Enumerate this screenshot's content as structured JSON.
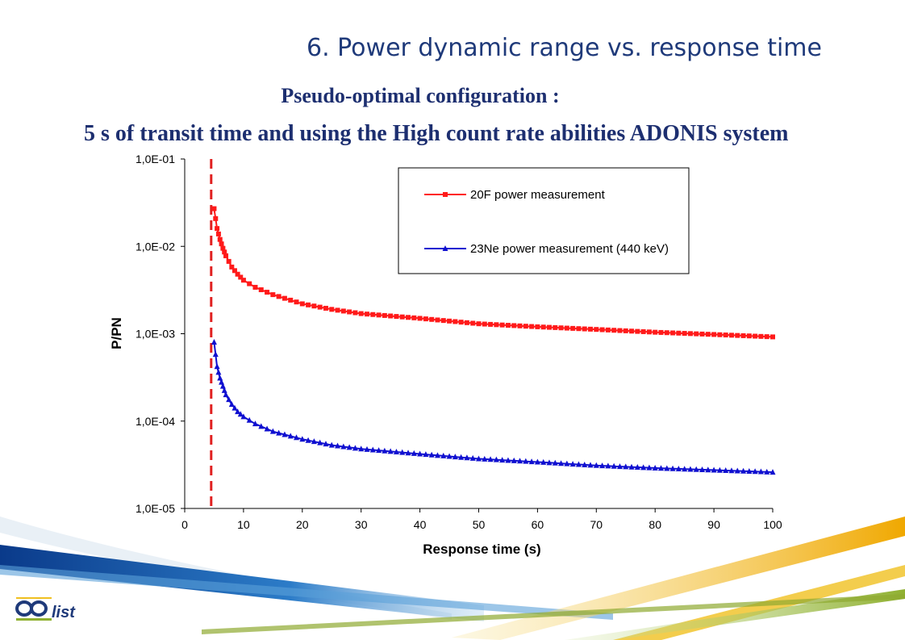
{
  "slide": {
    "title": "6. Power dynamic range vs. response time",
    "subtitle1": "Pseudo-optimal configuration :",
    "subtitle2": "5 s of transit time and using the High count rate abilities ADONIS system"
  },
  "logo": {
    "text": "list"
  },
  "colors": {
    "series1": "#ff1a1a",
    "series2": "#1010d0",
    "title": "#1f3a7a",
    "subtitle": "#1d2f70",
    "marker_line": "#e02020"
  },
  "chart_data": {
    "type": "line",
    "x_label": "Response time (s)",
    "y_label": "P/PN",
    "y_scale": "log",
    "xlim": [
      0,
      100
    ],
    "ylim": [
      1e-05,
      0.1
    ],
    "x_ticks": [
      "0",
      "10",
      "20",
      "30",
      "40",
      "50",
      "60",
      "70",
      "80",
      "90",
      "100"
    ],
    "y_ticks": [
      "1,0E-05",
      "1,0E-04",
      "1,0E-03",
      "1,0E-02",
      "1,0E-01"
    ],
    "vertical_line_x": 4.5,
    "legend_position": "top-right",
    "grid": false,
    "series": [
      {
        "name": "20F power measurement",
        "marker": "square",
        "x": [
          5,
          5.5,
          6,
          6.5,
          7,
          8,
          9,
          10,
          12,
          15,
          20,
          25,
          30,
          40,
          50,
          60,
          70,
          80,
          90,
          100
        ],
        "y": [
          0.027,
          0.016,
          0.012,
          0.0095,
          0.0078,
          0.0058,
          0.0048,
          0.0041,
          0.0034,
          0.0028,
          0.0022,
          0.0019,
          0.0017,
          0.0015,
          0.0013,
          0.0012,
          0.00112,
          0.00104,
          0.00098,
          0.00092
        ]
      },
      {
        "name": "23Ne power measurement (440 keV)",
        "marker": "triangle",
        "x": [
          5,
          5.5,
          6,
          6.5,
          7,
          8,
          9,
          10,
          12,
          15,
          20,
          25,
          30,
          40,
          50,
          60,
          70,
          80,
          90,
          100
        ],
        "y": [
          0.0008,
          0.00042,
          0.00031,
          0.00025,
          0.0002,
          0.000155,
          0.000128,
          0.000112,
          9.3e-05,
          7.6e-05,
          6.2e-05,
          5.3e-05,
          4.8e-05,
          4.2e-05,
          3.7e-05,
          3.4e-05,
          3.1e-05,
          2.9e-05,
          2.75e-05,
          2.6e-05
        ]
      }
    ]
  }
}
